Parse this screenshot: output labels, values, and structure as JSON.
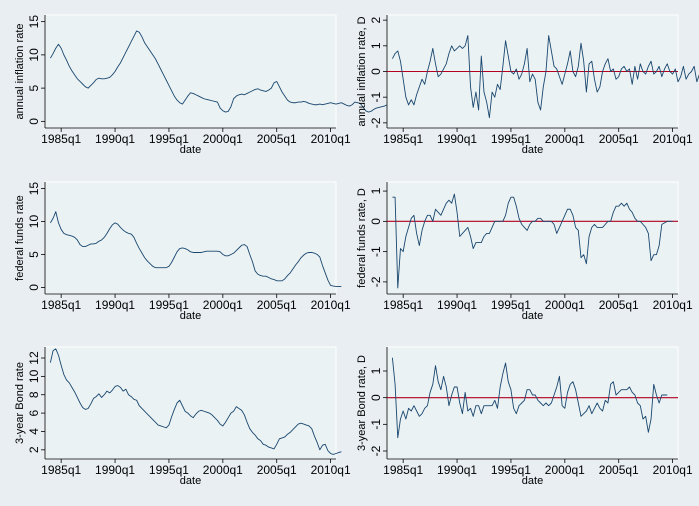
{
  "chart_data": [
    {
      "type": "line",
      "ylabel": "annual inflation rate",
      "xlabel": "date",
      "x_ticks": [
        "1985q1",
        "1990q1",
        "1995q1",
        "2000q1",
        "2005q1",
        "2010q1"
      ],
      "y_ticks": [
        "0",
        "5",
        "10",
        "15"
      ],
      "y_tick_values": [
        0,
        5,
        10,
        15
      ],
      "ylim": [
        -1,
        16
      ],
      "reference_line": null,
      "line_color": "#1a476f",
      "series": [
        {
          "x_start": 1984.0,
          "x_step": 0.25,
          "values": [
            9.5,
            10.2,
            11,
            11.6,
            11,
            10,
            9.2,
            8.3,
            7.6,
            7,
            6.4,
            6,
            5.6,
            5.2,
            5.0,
            5.4,
            5.8,
            6.3,
            6.5,
            6.4,
            6.4,
            6.5,
            6.6,
            7.0,
            7.5,
            8.2,
            8.8,
            9.6,
            10.4,
            11.2,
            12.0,
            12.8,
            13.6,
            13.4,
            12.7,
            11.8,
            11.2,
            10.6,
            10.0,
            9.4,
            8.6,
            7.8,
            7.0,
            6.2,
            5.4,
            4.6,
            3.8,
            3.2,
            2.8,
            2.6,
            3.2,
            3.8,
            4.3,
            4.2,
            4.0,
            3.8,
            3.6,
            3.4,
            3.3,
            3.2,
            3.1,
            3.0,
            2.9,
            2.0,
            1.6,
            1.4,
            1.5,
            2.2,
            3.4,
            3.8,
            4.0,
            4.1,
            4.0,
            4.2,
            4.4,
            4.6,
            4.8,
            4.9,
            4.7,
            4.6,
            4.5,
            4.7,
            5.0,
            5.8,
            6.0,
            5.2,
            4.4,
            3.8,
            3.2,
            2.9,
            2.8,
            2.8,
            2.9,
            2.9,
            3.0,
            2.9,
            2.7,
            2.6,
            2.5,
            2.5,
            2.6,
            2.5,
            2.6,
            2.7,
            2.8,
            2.7,
            2.6,
            2.7,
            2.8,
            2.6,
            2.4,
            2.3,
            2.5,
            2.9,
            2.8,
            2.7,
            2.2,
            1.6,
            1.4,
            1.5,
            1.8,
            2.0,
            2.1,
            2.2,
            2.3,
            2.5,
            2.7
          ]
        }
      ]
    },
    {
      "type": "line",
      "ylabel": "annual inflation rate, D",
      "xlabel": "date",
      "x_ticks": [
        "1985q1",
        "1990q1",
        "1995q1",
        "2000q1",
        "2005q1",
        "2010q1"
      ],
      "y_ticks": [
        "-2",
        "-1",
        "0",
        "1",
        "2"
      ],
      "y_tick_values": [
        -2,
        -1,
        0,
        1,
        2
      ],
      "ylim": [
        -2.2,
        2.2
      ],
      "reference_line": 0,
      "ref_color": "#b4001e",
      "line_color": "#1a476f",
      "series": [
        {
          "x_start": 1984.0,
          "x_step": 0.25,
          "values": [
            0.5,
            0.7,
            0.8,
            0.4,
            -0.3,
            -1.0,
            -1.3,
            -1.1,
            -1.3,
            -0.9,
            -0.6,
            -0.3,
            -0.5,
            0.0,
            0.4,
            0.9,
            0.3,
            -0.2,
            -0.1,
            0.1,
            0.3,
            0.7,
            1.0,
            0.8,
            0.9,
            1.0,
            0.9,
            1.0,
            1.4,
            -0.6,
            -1.4,
            -0.8,
            -1.5,
            0.6,
            -0.8,
            -1.2,
            -1.8,
            -0.8,
            -1.0,
            -0.5,
            -0.7,
            0.2,
            1.2,
            0.6,
            0.0,
            -0.1,
            0.1,
            -0.3,
            -0.1,
            0.3,
            0.9,
            -0.4,
            -0.1,
            -0.3,
            -1.2,
            -1.5,
            -0.6,
            0.0,
            1.4,
            0.8,
            0.2,
            0.1,
            -0.2,
            -0.5,
            -0.1,
            0.3,
            0.8,
            0.0,
            -0.2,
            0.2,
            1.1,
            0.4,
            -0.8,
            0.3,
            0.4,
            -0.3,
            -0.8,
            -0.6,
            0.0,
            0.3,
            0.5,
            0.0,
            0.1,
            -0.3,
            -0.2,
            0.1,
            0.2,
            0.0,
            0.1,
            -0.5,
            0.2,
            -0.3,
            0.3,
            0.0,
            -0.1,
            0.2,
            0.4,
            -0.1,
            0.0,
            0.2,
            -0.2,
            0.1,
            0.3,
            0.0,
            -0.1,
            0.1,
            -0.4,
            -0.2,
            0.2,
            -0.3,
            -0.1,
            0.0,
            0.2,
            -0.4,
            -0.1,
            0.3,
            0.2,
            0.0,
            0.4,
            0.3,
            0.2
          ]
        }
      ]
    },
    {
      "type": "line",
      "ylabel": "federal funds rate",
      "xlabel": "date",
      "x_ticks": [
        "1985q1",
        "1990q1",
        "1995q1",
        "2000q1",
        "2005q1",
        "2010q1"
      ],
      "y_ticks": [
        "0",
        "5",
        "10",
        "15"
      ],
      "y_tick_values": [
        0,
        5,
        10,
        15
      ],
      "ylim": [
        -1,
        16
      ],
      "reference_line": null,
      "line_color": "#1a476f",
      "series": [
        {
          "x_start": 1984.0,
          "x_step": 0.25,
          "values": [
            9.8,
            10.5,
            11.5,
            9.8,
            8.8,
            8.2,
            8.0,
            7.9,
            7.8,
            7.6,
            7.2,
            6.5,
            6.2,
            6.2,
            6.4,
            6.6,
            6.6,
            6.7,
            7.0,
            7.2,
            7.6,
            8.2,
            8.9,
            9.5,
            9.8,
            9.6,
            9.1,
            8.7,
            8.4,
            8.2,
            8.1,
            7.6,
            6.7,
            5.9,
            5.2,
            4.5,
            4.0,
            3.6,
            3.2,
            3.0,
            3.0,
            3.0,
            3.0,
            3.0,
            3.2,
            3.8,
            4.6,
            5.4,
            5.9,
            6.0,
            5.9,
            5.7,
            5.4,
            5.3,
            5.3,
            5.3,
            5.3,
            5.4,
            5.5,
            5.5,
            5.5,
            5.5,
            5.5,
            5.4,
            5.0,
            4.8,
            4.8,
            5.0,
            5.2,
            5.6,
            6.0,
            6.4,
            6.5,
            6.2,
            5.0,
            3.9,
            2.5,
            2.0,
            1.8,
            1.7,
            1.7,
            1.5,
            1.3,
            1.2,
            1.0,
            1.0,
            1.0,
            1.3,
            1.8,
            2.2,
            2.8,
            3.4,
            3.9,
            4.5,
            4.9,
            5.2,
            5.3,
            5.3,
            5.2,
            5.0,
            4.6,
            3.3,
            2.2,
            1.1,
            0.3,
            0.2,
            0.15,
            0.15,
            0.15
          ]
        }
      ]
    },
    {
      "type": "line",
      "ylabel": "federal funds rate, D",
      "xlabel": "date",
      "x_ticks": [
        "1985q1",
        "1990q1",
        "1995q1",
        "2000q1",
        "2005q1",
        "2010q1"
      ],
      "y_ticks": [
        "-2",
        "-1",
        "0",
        "1"
      ],
      "y_tick_values": [
        -2,
        -1,
        0,
        1
      ],
      "ylim": [
        -2.4,
        1.3
      ],
      "reference_line": 0,
      "ref_color": "#b4001e",
      "line_color": "#1a476f",
      "series": [
        {
          "x_start": 1984.0,
          "x_step": 0.25,
          "values": [
            0.8,
            0.8,
            -2.2,
            -0.9,
            -1.0,
            -0.5,
            -0.2,
            0.1,
            0.2,
            -0.4,
            -0.8,
            -0.3,
            0.0,
            0.2,
            0.2,
            0.0,
            0.4,
            0.3,
            0.2,
            0.4,
            0.6,
            0.7,
            0.6,
            0.9,
            0.3,
            -0.5,
            -0.4,
            -0.3,
            -0.2,
            -0.5,
            -0.9,
            -0.7,
            -0.7,
            -0.7,
            -0.5,
            -0.4,
            -0.4,
            -0.2,
            0.0,
            0.0,
            0.0,
            0.0,
            0.2,
            0.6,
            0.8,
            0.8,
            0.5,
            0.1,
            -0.1,
            -0.2,
            -0.3,
            -0.1,
            0.0,
            0.0,
            0.1,
            0.1,
            0.0,
            0.0,
            0.0,
            0.0,
            -0.1,
            -0.4,
            -0.2,
            0.0,
            0.2,
            0.4,
            0.4,
            0.2,
            -0.2,
            -0.3,
            -1.2,
            -1.1,
            -1.4,
            -0.5,
            -0.2,
            -0.1,
            -0.2,
            -0.2,
            -0.2,
            -0.1,
            0.0,
            0.0,
            0.3,
            0.5,
            0.5,
            0.6,
            0.5,
            0.6,
            0.4,
            0.3,
            0.1,
            0.0,
            0.0,
            -0.1,
            -0.2,
            -0.4,
            -1.3,
            -1.1,
            -1.1,
            -0.8,
            -0.1,
            -0.05,
            0.0,
            0.0,
            0.0
          ]
        }
      ]
    },
    {
      "type": "line",
      "ylabel": "3-year Bond rate",
      "xlabel": "date",
      "x_ticks": [
        "1985q1",
        "1990q1",
        "1995q1",
        "2000q1",
        "2005q1",
        "2010q1"
      ],
      "y_ticks": [
        "2",
        "4",
        "6",
        "8",
        "10",
        "12"
      ],
      "y_tick_values": [
        2,
        4,
        6,
        8,
        10,
        12
      ],
      "ylim": [
        1,
        13.2
      ],
      "reference_line": null,
      "line_color": "#1a476f",
      "series": [
        {
          "x_start": 1984.0,
          "x_step": 0.25,
          "values": [
            11.5,
            12.8,
            13.0,
            12.3,
            11.2,
            10.2,
            9.6,
            9.3,
            8.8,
            8.3,
            7.7,
            7.1,
            6.6,
            6.4,
            6.5,
            7.0,
            7.6,
            7.8,
            8.1,
            7.7,
            8.0,
            8.4,
            8.2,
            8.5,
            8.9,
            9.0,
            8.8,
            8.4,
            8.6,
            8.0,
            7.8,
            7.5,
            7.4,
            6.8,
            6.5,
            6.2,
            5.9,
            5.6,
            5.3,
            5.0,
            4.7,
            4.6,
            4.5,
            4.4,
            4.7,
            5.6,
            6.4,
            7.1,
            7.4,
            6.8,
            6.2,
            6.0,
            5.7,
            5.5,
            5.9,
            6.2,
            6.3,
            6.2,
            6.1,
            6.0,
            5.8,
            5.5,
            5.2,
            4.8,
            4.6,
            5.0,
            5.5,
            6.0,
            6.2,
            6.7,
            6.5,
            6.3,
            5.8,
            5.0,
            4.3,
            3.9,
            3.6,
            3.2,
            3.0,
            2.6,
            2.5,
            2.3,
            2.2,
            2.1,
            2.6,
            3.2,
            3.3,
            3.4,
            3.7,
            3.9,
            4.2,
            4.5,
            4.8,
            4.9,
            4.8,
            4.7,
            4.6,
            4.3,
            3.5,
            2.8,
            2.0,
            2.5,
            2.6,
            1.9,
            1.6,
            1.5,
            1.6,
            1.7,
            1.8
          ]
        }
      ]
    },
    {
      "type": "line",
      "ylabel": "3-year Bond rate, D",
      "xlabel": "date",
      "x_ticks": [
        "1985q1",
        "1990q1",
        "1995q1",
        "2000q1",
        "2005q1",
        "2010q1"
      ],
      "y_ticks": [
        "-2",
        "-1",
        "0",
        "1"
      ],
      "y_tick_values": [
        -2,
        -1,
        0,
        1
      ],
      "ylim": [
        -2.3,
        1.9
      ],
      "reference_line": 0,
      "ref_color": "#b4001e",
      "line_color": "#1a476f",
      "series": [
        {
          "x_start": 1984.0,
          "x_step": 0.25,
          "values": [
            1.5,
            0.5,
            -1.5,
            -0.8,
            -0.5,
            -0.8,
            -0.4,
            -0.5,
            -0.3,
            -0.5,
            -0.7,
            -0.6,
            -0.4,
            -0.3,
            0.2,
            0.5,
            1.2,
            0.6,
            0.3,
            0.8,
            0.4,
            -0.3,
            0.1,
            0.4,
            0.4,
            -0.2,
            -0.6,
            0.2,
            -0.5,
            -0.4,
            -0.7,
            -0.3,
            -0.3,
            -0.6,
            -0.3,
            -0.3,
            -0.3,
            -0.3,
            -0.1,
            -0.4,
            0.4,
            0.9,
            1.3,
            0.6,
            0.3,
            -0.4,
            -0.6,
            -0.3,
            -0.2,
            -0.1,
            0.3,
            0.3,
            0.1,
            0.1,
            -0.1,
            -0.2,
            -0.3,
            -0.2,
            -0.3,
            -0.2,
            0.1,
            0.4,
            0.8,
            -0.3,
            -0.4,
            0.2,
            0.5,
            0.6,
            0.3,
            -0.2,
            -0.7,
            -0.6,
            -0.5,
            -0.3,
            -0.6,
            -0.4,
            -0.2,
            -0.4,
            -0.5,
            -0.1,
            -0.2,
            0.5,
            0.6,
            0.1,
            0.2,
            0.3,
            0.3,
            0.3,
            0.4,
            0.2,
            0.1,
            -0.2,
            -0.3,
            -0.8,
            -0.7,
            -1.3,
            -0.8,
            0.5,
            0.1,
            -0.2,
            0.1,
            0.1,
            0.1
          ]
        }
      ]
    }
  ]
}
